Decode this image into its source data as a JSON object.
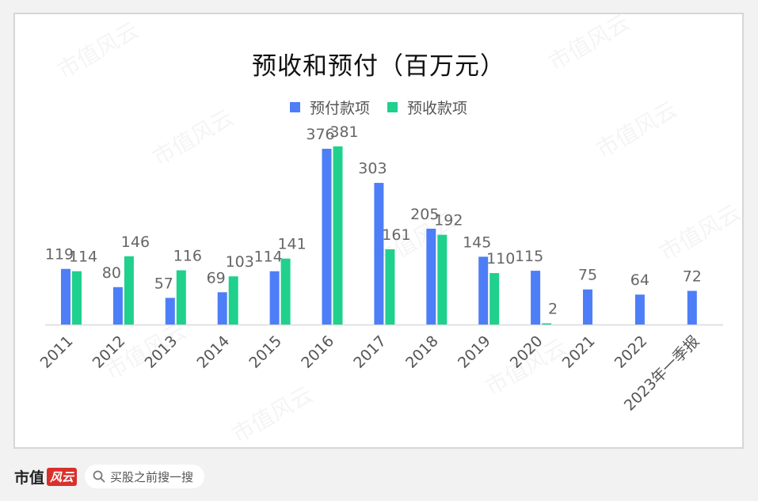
{
  "chart_data": {
    "type": "bar",
    "title": "预收和预付（百万元）",
    "categories": [
      "2011",
      "2012",
      "2013",
      "2014",
      "2015",
      "2016",
      "2017",
      "2018",
      "2019",
      "2020",
      "2021",
      "2022",
      "2023年一季报"
    ],
    "series": [
      {
        "name": "预付款项",
        "color": "#4e7ef7",
        "values": [
          119,
          80,
          57,
          69,
          114,
          376,
          303,
          205,
          145,
          115,
          75,
          64,
          72
        ]
      },
      {
        "name": "预收款项",
        "color": "#1fd18c",
        "values": [
          114,
          146,
          116,
          103,
          141,
          381,
          161,
          192,
          110,
          2,
          null,
          null,
          null
        ]
      }
    ],
    "ylim": [
      0,
      381
    ],
    "legend_position": "top-center",
    "grid": false
  },
  "watermark": "市值风云",
  "footer": {
    "brand_text": "市值",
    "brand_badge": "风云",
    "search_text": "买股之前搜一搜"
  }
}
